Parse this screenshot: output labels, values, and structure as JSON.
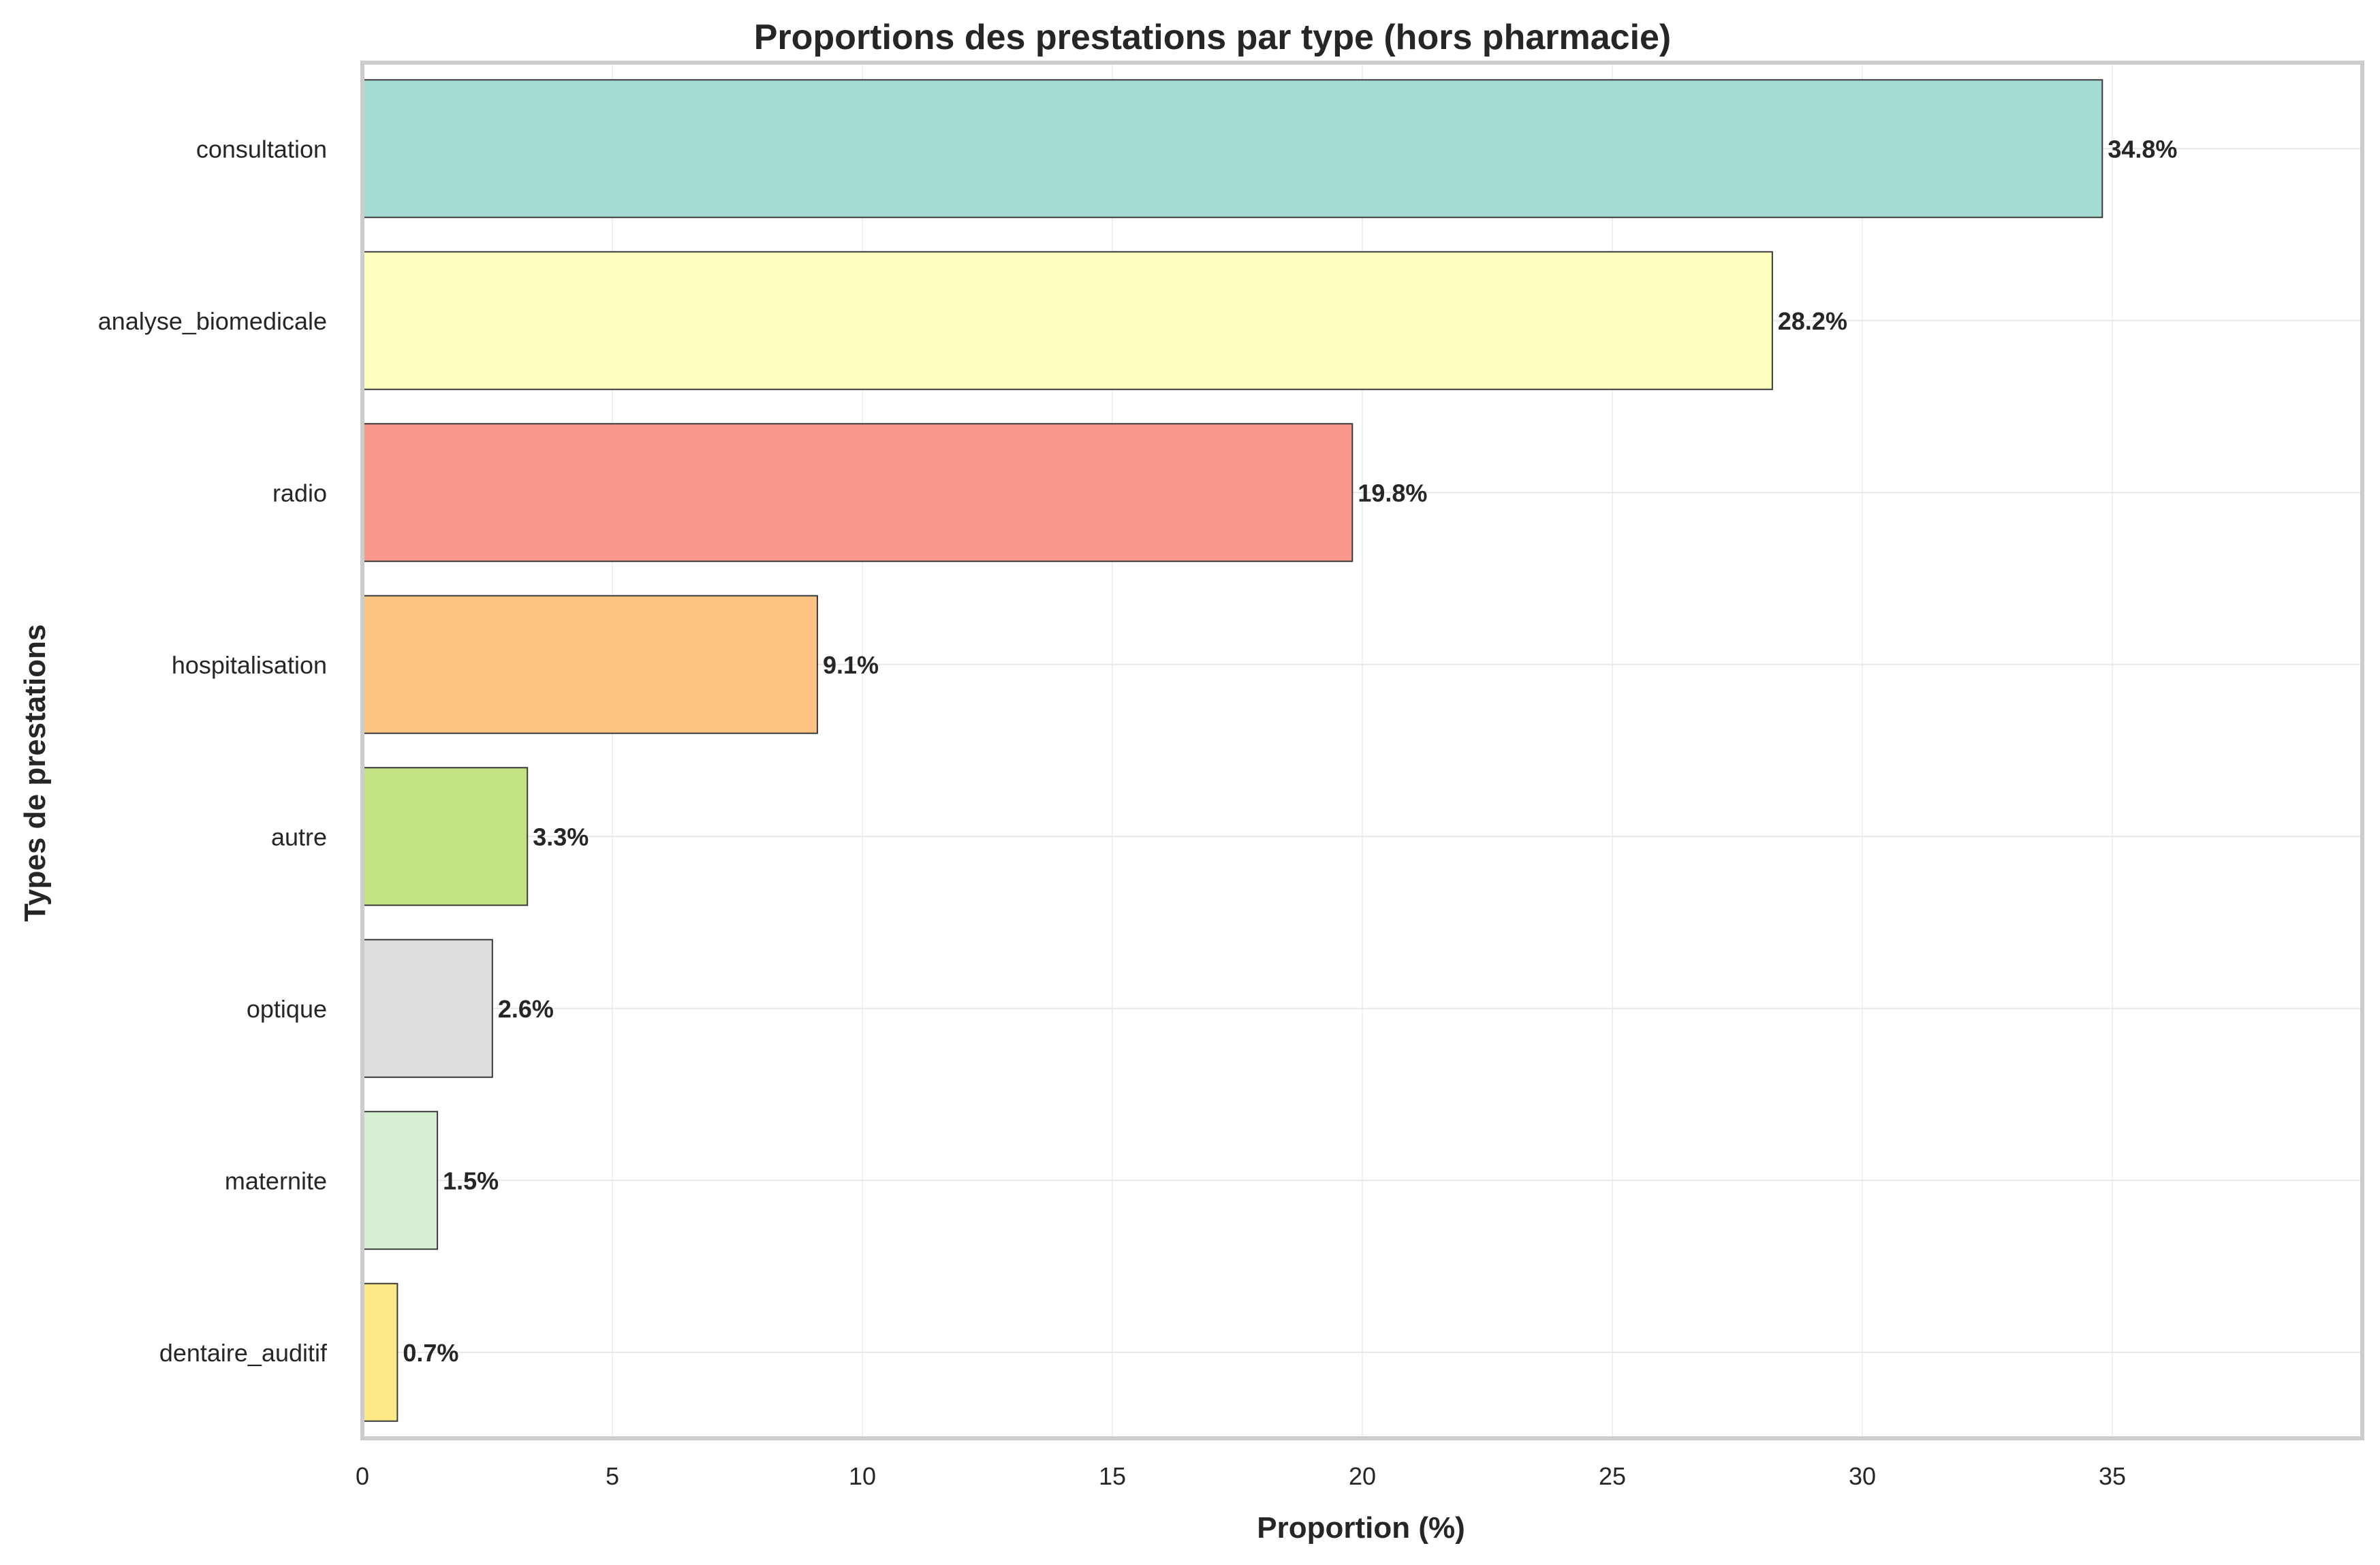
{
  "chart_data": {
    "type": "bar",
    "orientation": "horizontal",
    "title": "Proportions des prestations par type (hors pharmacie)",
    "xlabel": "Proportion (%)",
    "ylabel": "Types de prestations",
    "xlim": [
      0,
      40
    ],
    "xticks": [
      0,
      5,
      10,
      15,
      20,
      25,
      30,
      35
    ],
    "grid": true,
    "legend": "none",
    "categories": [
      "consultation",
      "analyse_biomedicale",
      "radio",
      "hospitalisation",
      "autre",
      "optique",
      "maternite",
      "dentaire_auditif"
    ],
    "values": [
      34.8,
      28.2,
      19.8,
      9.1,
      3.3,
      2.6,
      1.5,
      0.7
    ],
    "value_labels": [
      "34.8%",
      "28.2%",
      "19.8%",
      "9.1%",
      "3.3%",
      "2.6%",
      "1.5%",
      "0.7%"
    ],
    "colors": [
      "#a4dbd3",
      "#ffffc0",
      "#f8988c",
      "#fcc482",
      "#c2e284",
      "#dedede",
      "#d6efd2",
      "#fee988"
    ]
  }
}
